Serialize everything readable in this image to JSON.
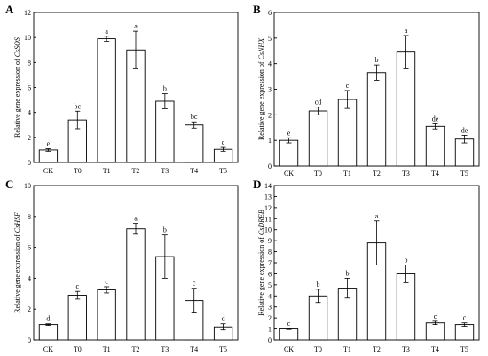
{
  "chart_data": [
    {
      "panel": "A",
      "type": "bar",
      "ylabel_prefix": "Relative gene expression of ",
      "gene": "CsSOS",
      "categories": [
        "CK",
        "T0",
        "T1",
        "T2",
        "T3",
        "T4",
        "T5"
      ],
      "values": [
        1.0,
        3.4,
        9.9,
        9.0,
        4.9,
        3.0,
        1.05
      ],
      "errors": [
        0.1,
        0.7,
        0.2,
        1.5,
        0.6,
        0.25,
        0.15
      ],
      "significance": [
        "e",
        "bc",
        "a",
        "a",
        "b",
        "bc",
        "c"
      ],
      "ylim": [
        0,
        12
      ],
      "yticks": [
        0,
        2,
        4,
        6,
        8,
        10,
        12
      ]
    },
    {
      "panel": "B",
      "type": "bar",
      "ylabel_prefix": "Relative gene expression of ",
      "gene": "CsNHX",
      "categories": [
        "CK",
        "T0",
        "T1",
        "T2",
        "T3",
        "T4",
        "T5"
      ],
      "values": [
        1.0,
        2.15,
        2.6,
        3.65,
        4.45,
        1.55,
        1.05
      ],
      "errors": [
        0.1,
        0.15,
        0.35,
        0.3,
        0.65,
        0.1,
        0.15
      ],
      "significance": [
        "e",
        "cd",
        "c",
        "b",
        "a",
        "de",
        "de"
      ],
      "ylim": [
        0,
        6
      ],
      "yticks": [
        0,
        1,
        2,
        3,
        4,
        5,
        6
      ]
    },
    {
      "panel": "C",
      "type": "bar",
      "ylabel_prefix": "Relative gene expression of ",
      "gene": "CsHSF",
      "categories": [
        "CK",
        "T0",
        "T1",
        "T2",
        "T3",
        "T4",
        "T5"
      ],
      "values": [
        1.0,
        2.9,
        3.25,
        7.2,
        5.4,
        2.55,
        0.85
      ],
      "errors": [
        0.05,
        0.25,
        0.2,
        0.35,
        1.4,
        0.8,
        0.2
      ],
      "significance": [
        "d",
        "c",
        "c",
        "a",
        "b",
        "c",
        "d"
      ],
      "ylim": [
        0,
        10
      ],
      "yticks": [
        0,
        2,
        4,
        6,
        8,
        10
      ]
    },
    {
      "panel": "D",
      "type": "bar",
      "ylabel_prefix": "Relative gene expression of ",
      "gene": "CsDREB",
      "categories": [
        "CK",
        "T0",
        "T1",
        "T2",
        "T3",
        "T4",
        "T5"
      ],
      "values": [
        1.0,
        4.0,
        4.7,
        8.8,
        6.0,
        1.55,
        1.4
      ],
      "errors": [
        0.05,
        0.6,
        0.9,
        2.0,
        0.8,
        0.15,
        0.15
      ],
      "significance": [
        "c",
        "b",
        "b",
        "a",
        "b",
        "c",
        "c"
      ],
      "ylim": [
        0,
        14
      ],
      "yticks": [
        0,
        1,
        2,
        3,
        4,
        5,
        6,
        7,
        8,
        9,
        10,
        11,
        12,
        13,
        14
      ]
    }
  ]
}
